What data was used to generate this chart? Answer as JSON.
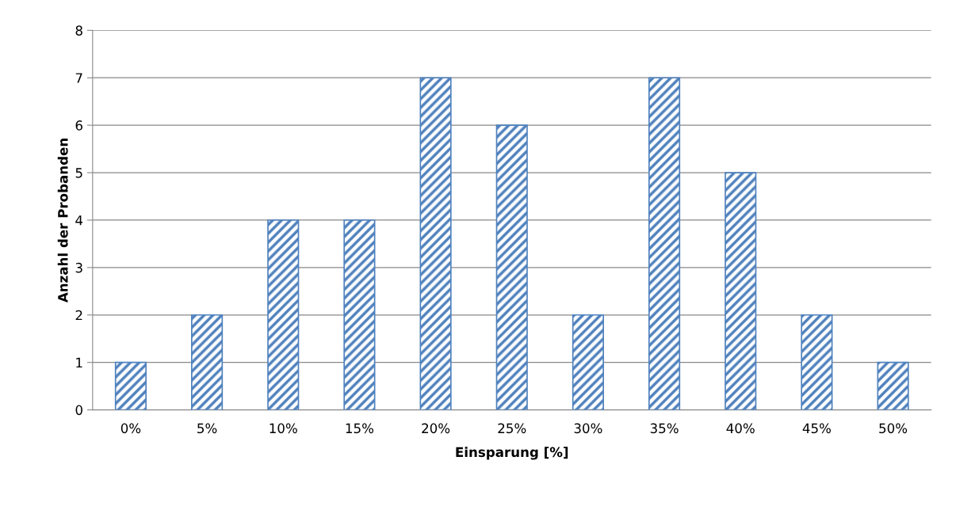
{
  "chart_data": {
    "type": "bar",
    "categories": [
      "0%",
      "5%",
      "10%",
      "15%",
      "20%",
      "25%",
      "30%",
      "35%",
      "40%",
      "45%",
      "50%"
    ],
    "values": [
      1,
      2,
      4,
      4,
      7,
      6,
      2,
      7,
      5,
      2,
      1
    ],
    "color": "#4f81bd",
    "xlabel": "Einsparung [%]",
    "ylabel": "Anzahl der Probanden",
    "ylim": [
      0,
      8
    ],
    "yticks": [
      0,
      1,
      2,
      3,
      4,
      5,
      6,
      7,
      8
    ],
    "grid": "y",
    "legend": false
  }
}
